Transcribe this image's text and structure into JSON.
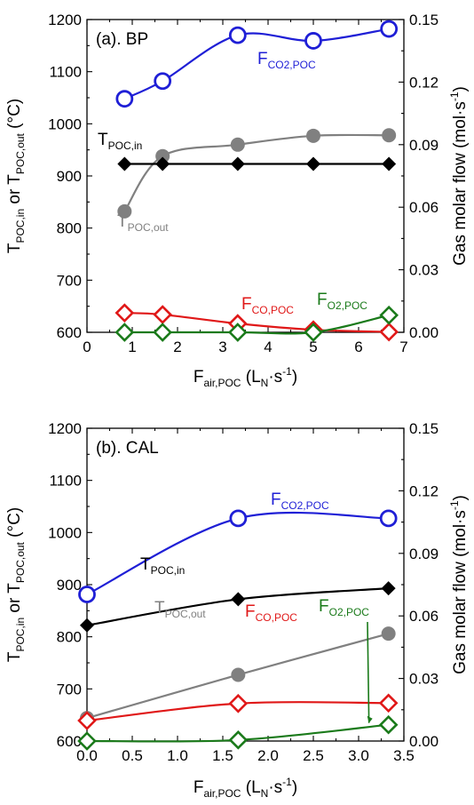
{
  "chart_data": [
    {
      "type": "line",
      "title": "(a). BP",
      "xlabel": "F_air,POC (L_N·s^-1)",
      "xlabel_parts": {
        "main": "F",
        "sub": "air,POC",
        "rest1": " (L",
        "sub2": "N",
        "rest2": "·s",
        "sup": "-1",
        "rest3": ")"
      },
      "ylabel_left": "T_POC,in or T_POC,out (°C)",
      "ylabel_left_parts": {
        "t1": "T",
        "s1": "POC,in",
        "mid": " or T",
        "s2": "POC,out",
        "end": " (°C)"
      },
      "ylabel_right": "Gas molar flow (mol·s^-1)",
      "ylabel_right_parts": {
        "main": "Gas molar flow (mol·s",
        "sup": "-1",
        "end": ")"
      },
      "xlim": [
        0,
        7
      ],
      "ylim_left": [
        600,
        1200
      ],
      "ylim_right": [
        0,
        0.15
      ],
      "x_ticks": [
        "0",
        "1",
        "2",
        "3",
        "4",
        "5",
        "6",
        "7"
      ],
      "y_left_ticks": [
        "600",
        "700",
        "800",
        "900",
        "1000",
        "1100",
        "1200"
      ],
      "y_right_ticks": [
        "0.00",
        "0.03",
        "0.06",
        "0.09",
        "0.12",
        "0.15"
      ],
      "series": [
        {
          "name": "F_CO2,POC",
          "label_main": "F",
          "label_sub": "CO2,POC",
          "axis": "right",
          "color": "#1f1fd6",
          "marker": "open-circle",
          "x": [
            0.83,
            1.67,
            3.33,
            5.0,
            6.67
          ],
          "y": [
            0.112,
            0.1205,
            0.1425,
            0.1398,
            0.1455
          ]
        },
        {
          "name": "T_POC,out",
          "label_main": "T",
          "label_sub": "POC,out",
          "axis": "left",
          "color": "#808080",
          "marker": "filled-circle",
          "x": [
            0.83,
            1.67,
            3.33,
            5.0,
            6.67
          ],
          "y": [
            832,
            938,
            960,
            977,
            978
          ]
        },
        {
          "name": "T_POC,in",
          "label_main": "T",
          "label_sub": "POC,in",
          "axis": "left",
          "color": "#000000",
          "marker": "filled-diamond",
          "x": [
            0.83,
            1.67,
            3.33,
            5.0,
            6.67
          ],
          "y": [
            923,
            923,
            923,
            923,
            923
          ]
        },
        {
          "name": "F_CO,POC",
          "label_main": "F",
          "label_sub": "CO,POC",
          "axis": "right",
          "color": "#e01818",
          "marker": "open-diamond",
          "x": [
            0.83,
            1.67,
            3.33,
            5.0,
            6.67
          ],
          "y": [
            0.0093,
            0.0085,
            0.0042,
            0.0012,
            0.0002
          ]
        },
        {
          "name": "F_O2,POC",
          "label_main": "F",
          "label_sub": "O2,POC",
          "axis": "right",
          "color": "#1a7a1a",
          "marker": "open-diamond",
          "x": [
            0.83,
            1.67,
            3.33,
            5.0,
            6.67
          ],
          "y": [
            0.0,
            0.0,
            0.0,
            0.0,
            0.0082
          ]
        }
      ]
    },
    {
      "type": "line",
      "title": "(b). CAL",
      "xlabel": "F_air,POC (L_N·s^-1)",
      "xlabel_parts": {
        "main": "F",
        "sub": "air,POC",
        "rest1": " (L",
        "sub2": "N",
        "rest2": "·s",
        "sup": "-1",
        "rest3": ")"
      },
      "ylabel_left": "T_POC,in or T_POC,out (°C)",
      "ylabel_left_parts": {
        "t1": "T",
        "s1": "POC,in",
        "mid": " or T",
        "s2": "POC,out",
        "end": " (°C)"
      },
      "ylabel_right": "Gas molar flow (mol·s^-1)",
      "ylabel_right_parts": {
        "main": "Gas molar flow (mol·s",
        "sup": "-1",
        "end": ")"
      },
      "xlim": [
        0,
        3.5
      ],
      "ylim_left": [
        600,
        1200
      ],
      "ylim_right": [
        0,
        0.15
      ],
      "x_ticks": [
        "0.0",
        "0.5",
        "1.0",
        "1.5",
        "2.0",
        "2.5",
        "3.0",
        "3.5"
      ],
      "y_left_ticks": [
        "600",
        "700",
        "800",
        "900",
        "1000",
        "1100",
        "1200"
      ],
      "y_right_ticks": [
        "0.00",
        "0.03",
        "0.06",
        "0.09",
        "0.12",
        "0.15"
      ],
      "series": [
        {
          "name": "F_CO2,POC",
          "label_main": "F",
          "label_sub": "CO2,POC",
          "axis": "right",
          "color": "#1f1fd6",
          "marker": "open-circle",
          "x": [
            0.0,
            1.67,
            3.33
          ],
          "y": [
            0.0703,
            0.1068,
            0.1068
          ]
        },
        {
          "name": "T_POC,in",
          "label_main": "T",
          "label_sub": "POC,in",
          "axis": "left",
          "color": "#000000",
          "marker": "filled-diamond",
          "x": [
            0.0,
            1.67,
            3.33
          ],
          "y": [
            822,
            872,
            893
          ]
        },
        {
          "name": "T_POC,out",
          "label_main": "T",
          "label_sub": "POC,out",
          "axis": "left",
          "color": "#808080",
          "marker": "filled-circle",
          "x": [
            0.0,
            1.67,
            3.33
          ],
          "y": [
            644,
            727,
            806
          ]
        },
        {
          "name": "F_CO,POC",
          "label_main": "F",
          "label_sub": "CO,POC",
          "axis": "right",
          "color": "#e01818",
          "marker": "open-diamond",
          "x": [
            0.0,
            1.67,
            3.33
          ],
          "y": [
            0.0098,
            0.018,
            0.0182
          ]
        },
        {
          "name": "F_O2,POC",
          "label_main": "F",
          "label_sub": "O2,POC",
          "axis": "right",
          "color": "#1a7a1a",
          "marker": "open-diamond",
          "x": [
            0.0,
            1.67,
            3.33
          ],
          "y": [
            0.0,
            0.0005,
            0.0078
          ]
        }
      ]
    }
  ]
}
